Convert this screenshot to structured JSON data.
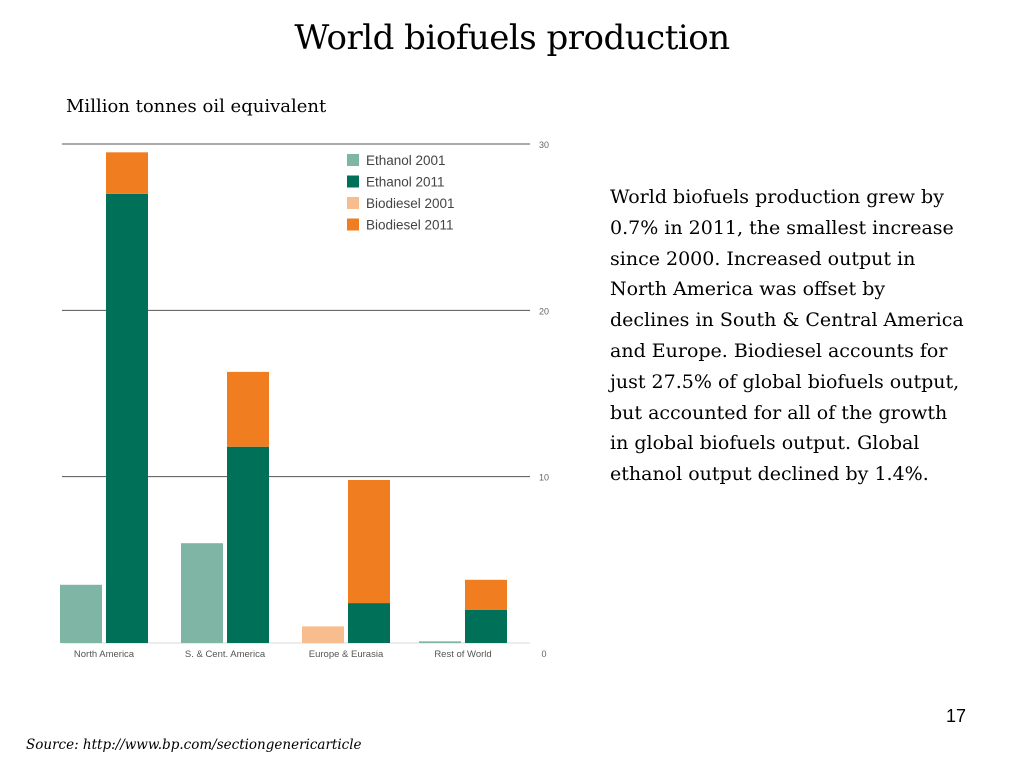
{
  "slide": {
    "title": "World biofuels production",
    "subtitle": "Million tonnes oil equivalent",
    "commentary": "World biofuels production grew by 0.7% in 2011, the smallest increase since 2000. Increased output in North America was offset by declines in South & Central America and Europe. Biodiesel accounts for just 27.5% of global biofuels output, but accounted for all of the growth in global biofuels output. Global ethanol output declined by 1.4%.",
    "page_number": "17",
    "source": "Source: http://www.bp.com/sectiongenericarticle"
  },
  "colors": {
    "ethanol_2001": "#7fb5a5",
    "ethanol_2011": "#007058",
    "biodiesel_2001": "#f7bd8e",
    "biodiesel_2011": "#f07d1f",
    "gridline": "#555555",
    "axis_text": "#666666"
  },
  "chart_data": {
    "type": "bar",
    "stacked": true,
    "categories": [
      "North America",
      "S. & Cent. America",
      "Europe & Eurasia",
      "Rest of World"
    ],
    "ylim": [
      0,
      30
    ],
    "yticks": [
      0,
      10,
      20,
      30
    ],
    "y_axis_side": "right",
    "grid": true,
    "legend_position": "top-right",
    "legend": [
      "Ethanol 2001",
      "Ethanol 2011",
      "Biodiesel 2001",
      "Biodiesel 2011"
    ],
    "years": [
      {
        "year": "2001",
        "series": [
          {
            "name": "Ethanol 2001",
            "values": [
              3.5,
              6.0,
              0.0,
              0.1
            ]
          },
          {
            "name": "Biodiesel 2001",
            "values": [
              0.0,
              0.0,
              1.0,
              0.0
            ]
          }
        ]
      },
      {
        "year": "2011",
        "series": [
          {
            "name": "Ethanol 2011",
            "values": [
              27.0,
              11.8,
              2.4,
              2.0
            ]
          },
          {
            "name": "Biodiesel 2011",
            "values": [
              2.5,
              4.5,
              7.4,
              1.8
            ]
          }
        ]
      }
    ]
  }
}
